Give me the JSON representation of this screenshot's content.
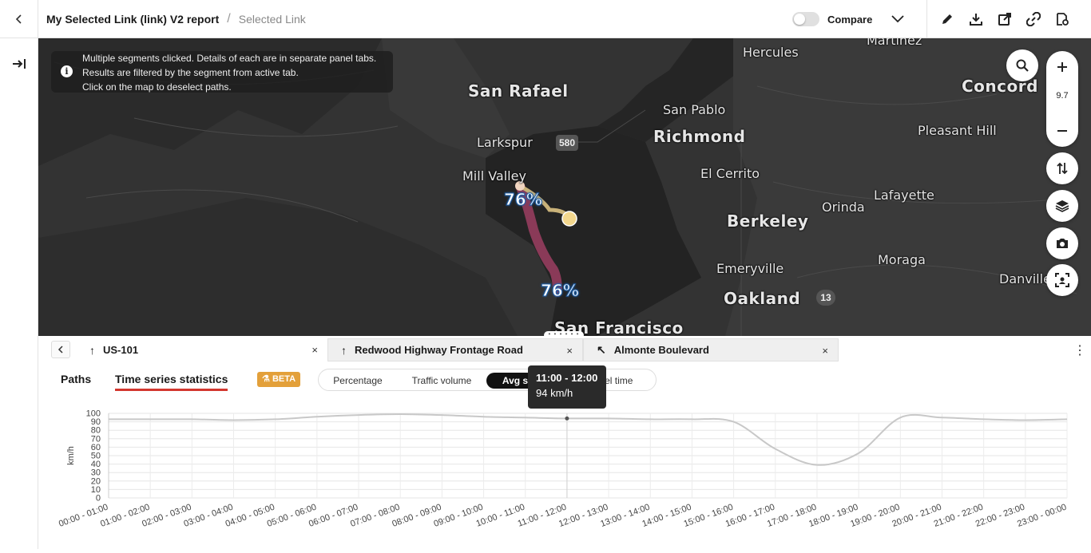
{
  "header": {
    "report_title": "My Selected Link (link) V2 report",
    "separator": "/",
    "sub_title": "Selected Link",
    "compare_label": "Compare"
  },
  "icons": {
    "back": "chevron-left-icon",
    "expand_panel": "arrow-right-to-bar-icon",
    "edit": "pencil-icon",
    "download": "download-icon",
    "share": "share-icon",
    "link": "link-icon",
    "settings": "report-settings-icon"
  },
  "map": {
    "info_lines": [
      "Multiple segments clicked. Details of each are in separate panel tabs.",
      "Results are filtered by the segment from active tab.",
      "Click on the map to deselect paths."
    ],
    "zoom_level": "9.7",
    "places": [
      {
        "name": "Hercules",
        "size": "mid"
      },
      {
        "name": "San Rafael",
        "size": "big"
      },
      {
        "name": "San Pablo",
        "size": "mid"
      },
      {
        "name": "Concord",
        "size": "big"
      },
      {
        "name": "Richmond",
        "size": "big"
      },
      {
        "name": "Pleasant Hill",
        "size": "mid"
      },
      {
        "name": "Larkspur",
        "size": "mid"
      },
      {
        "name": "Mill Valley",
        "size": "mid"
      },
      {
        "name": "El Cerrito",
        "size": "mid"
      },
      {
        "name": "Lafayette",
        "size": "mid"
      },
      {
        "name": "Berkeley",
        "size": "big"
      },
      {
        "name": "Orinda",
        "size": "mid"
      },
      {
        "name": "Emeryville",
        "size": "mid"
      },
      {
        "name": "Moraga",
        "size": "mid"
      },
      {
        "name": "Oakland",
        "size": "big"
      },
      {
        "name": "Danville",
        "size": "mid"
      },
      {
        "name": "San Francisco",
        "size": "big"
      },
      {
        "name": "Martinez",
        "size": "mid"
      }
    ],
    "shields": [
      "580",
      "13"
    ],
    "path_labels": [
      "76%",
      "76%"
    ]
  },
  "panel": {
    "segment_tabs": [
      {
        "label": "US-101",
        "arrow": "↑"
      },
      {
        "label": "Redwood Highway Frontage Road",
        "arrow": "↑"
      },
      {
        "label": "Almonte Boulevard",
        "arrow": "↖"
      }
    ],
    "close_glyph": "×",
    "subtabs": [
      "Paths",
      "Time series statistics"
    ],
    "beta_label": "BETA",
    "metric_options": [
      "Percentage",
      "Traffic volume",
      "Avg speed",
      "Travel time"
    ],
    "selected_metric": "Avg speed",
    "tooltip": {
      "time": "11:00 - 12:00",
      "value": "94 km/h"
    }
  },
  "chart_data": {
    "type": "line",
    "ylabel": "km/h",
    "xlabel": "",
    "ylim": [
      0,
      100
    ],
    "yticks": [
      0,
      10,
      20,
      30,
      40,
      50,
      60,
      70,
      80,
      90,
      100
    ],
    "grid": true,
    "categories": [
      "00:00 - 01:00",
      "01:00 - 02:00",
      "02:00 - 03:00",
      "03:00 - 04:00",
      "04:00 - 05:00",
      "05:00 - 06:00",
      "06:00 - 07:00",
      "07:00 - 08:00",
      "08:00 - 09:00",
      "09:00 - 10:00",
      "10:00 - 11:00",
      "11:00 - 12:00",
      "12:00 - 13:00",
      "13:00 - 14:00",
      "14:00 - 15:00",
      "15:00 - 16:00",
      "16:00 - 17:00",
      "17:00 - 18:00",
      "18:00 - 19:00",
      "19:00 - 20:00",
      "20:00 - 21:00",
      "21:00 - 22:00",
      "22:00 - 23:00",
      "23:00 - 00:00"
    ],
    "series": [
      {
        "values": [
          93,
          93,
          93,
          92,
          93,
          96,
          98,
          99,
          98,
          96,
          95,
          94,
          94,
          93,
          93,
          90,
          58,
          39,
          53,
          95,
          95,
          93,
          92,
          93
        ]
      }
    ],
    "highlight_index": 11
  }
}
